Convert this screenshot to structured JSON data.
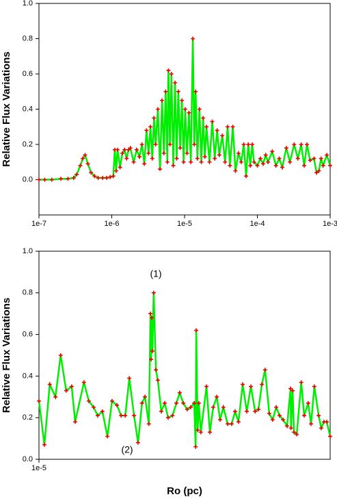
{
  "chart_data": [
    {
      "type": "line",
      "ylabel": "Relative Flux Variations",
      "xscale": "log",
      "color": "#00ee00",
      "marker_color": "#ee0000",
      "xlim": [
        1e-07,
        0.001
      ],
      "xticks": [
        {
          "value": 1e-07,
          "label": "1e-7"
        },
        {
          "value": 1e-06,
          "label": "1e-6"
        },
        {
          "value": 1e-05,
          "label": "1e-5"
        },
        {
          "value": 0.0001,
          "label": "1e-4"
        },
        {
          "value": 0.001,
          "label": "1e-3"
        }
      ],
      "ylim": [
        -0.2,
        1.0
      ],
      "yticks": [
        {
          "value": 0,
          "label": "0.0"
        },
        0.2,
        0.4,
        0.6,
        0.8,
        {
          "value": 1,
          "label": "1.0"
        }
      ],
      "x": [
        1e-07,
        1.2e-07,
        1.5e-07,
        2e-07,
        2.5e-07,
        3e-07,
        3.3e-07,
        3.7e-07,
        4e-07,
        4.3e-07,
        4.7e-07,
        5.2e-07,
        5.8e-07,
        6.5e-07,
        7.5e-07,
        8.5e-07,
        9.5e-07,
        1.05e-06,
        1.1e-06,
        1.15e-06,
        1.2e-06,
        1.3e-06,
        1.4e-06,
        1.5e-06,
        1.6e-06,
        1.7e-06,
        1.8e-06,
        2e-06,
        2.2e-06,
        2.4e-06,
        2.6e-06,
        2.8e-06,
        3e-06,
        3.2e-06,
        3.4e-06,
        3.6e-06,
        3.8e-06,
        4e-06,
        4.3e-06,
        4.6e-06,
        4.9e-06,
        5.2e-06,
        5.5e-06,
        5.8e-06,
        6e-06,
        6.3e-06,
        6.6e-06,
        7e-06,
        7.4e-06,
        7.8e-06,
        8.2e-06,
        8.7e-06,
        9.2e-06,
        9.7e-06,
        1.02e-05,
        1.08e-05,
        1.15e-05,
        1.22e-05,
        1.3e-05,
        1.36e-05,
        1.42e-05,
        1.5e-05,
        1.6e-05,
        1.7e-05,
        1.8e-05,
        1.9e-05,
        2e-05,
        2.2e-05,
        2.4e-05,
        2.6e-05,
        2.8e-05,
        3e-05,
        3.3e-05,
        3.6e-05,
        3.9e-05,
        4.2e-05,
        4.6e-05,
        5e-05,
        5.5e-05,
        6e-05,
        6.5e-05,
        7e-05,
        7.5e-05,
        8e-05,
        8.5e-05,
        9e-05,
        0.0001,
        0.00011,
        0.00012,
        0.00013,
        0.00014,
        0.00016,
        0.00018,
        0.0002,
        0.00022,
        0.00025,
        0.00028,
        0.00032,
        0.00036,
        0.0004,
        0.00044,
        0.00048,
        0.00053,
        0.0006,
        0.00065,
        0.0007,
        0.00075,
        0.0008,
        0.0009,
        0.001
      ],
      "values": [
        0,
        0,
        0,
        0.005,
        0.005,
        0.01,
        0.03,
        0.08,
        0.12,
        0.14,
        0.09,
        0.04,
        0.02,
        0.01,
        0.01,
        0.01,
        0.015,
        0.02,
        0.17,
        0.05,
        0.17,
        0.07,
        0.15,
        0.17,
        0.12,
        0.17,
        0.18,
        0.1,
        0.17,
        0.13,
        0.2,
        0.09,
        0.28,
        0.15,
        0.3,
        0.12,
        0.35,
        0.2,
        0.4,
        0.06,
        0.45,
        0.15,
        0.5,
        0.1,
        0.62,
        0.2,
        0.6,
        0.08,
        0.55,
        0.12,
        0.5,
        0.18,
        0.45,
        0.1,
        0.4,
        0.15,
        0.38,
        0.1,
        0.8,
        0.2,
        0.5,
        0.12,
        0.4,
        0.1,
        0.35,
        0.13,
        0.3,
        0.1,
        0.33,
        0.12,
        0.28,
        0.14,
        0.25,
        0.1,
        0.3,
        0.08,
        0.3,
        0.05,
        0.15,
        0.1,
        0.2,
        0.02,
        0.2,
        0.08,
        0.2,
        0.1,
        0.08,
        0.12,
        0.09,
        0.14,
        0.1,
        0.16,
        0.08,
        0.12,
        0.07,
        0.18,
        0.1,
        0.2,
        0.12,
        0.2,
        0.08,
        0.2,
        0.11,
        0.12,
        0.04,
        0.05,
        0.12,
        0.08,
        0.14,
        0.08
      ]
    },
    {
      "type": "line",
      "ylabel": "Relative Flux Variations",
      "xlabel": "Ro (pc)",
      "xscale": "log",
      "color": "#00ee00",
      "marker_color": "#ee0000",
      "annotations": [
        "(1)",
        "(2)"
      ],
      "xlim": [
        1e-05,
        2e-05
      ],
      "xticks": [
        {
          "value": 1e-05,
          "label": "1e-5"
        }
      ],
      "ylim": [
        0,
        1.0
      ],
      "yticks": [
        {
          "value": 0,
          "label": "0.0"
        },
        0.2,
        0.4,
        0.6,
        0.8,
        {
          "value": 1,
          "label": "1.0"
        }
      ],
      "x": [
        1e-05,
        1.013e-05,
        1.026e-05,
        1.04e-05,
        1.053e-05,
        1.067e-05,
        1.081e-05,
        1.09e-05,
        1.113e-05,
        1.126e-05,
        1.139e-05,
        1.15e-05,
        1.163e-05,
        1.177e-05,
        1.19e-05,
        1.204e-05,
        1.216e-05,
        1.228e-05,
        1.24e-05,
        1.254e-05,
        1.266e-05,
        1.278e-05,
        1.287e-05,
        1.299e-05,
        1.304e-05,
        1.306e-05,
        1.308e-05,
        1.31e-05,
        1.314e-05,
        1.321e-05,
        1.327e-05,
        1.338e-05,
        1.349e-05,
        1.36e-05,
        1.374e-05,
        1.387e-05,
        1.398e-05,
        1.41e-05,
        1.423e-05,
        1.435e-05,
        1.447e-05,
        1.452e-05,
        1.454e-05,
        1.459e-05,
        1.463e-05,
        1.47e-05,
        1.49e-05,
        1.502e-05,
        1.514e-05,
        1.527e-05,
        1.539e-05,
        1.551e-05,
        1.567e-05,
        1.582e-05,
        1.595e-05,
        1.608e-05,
        1.624e-05,
        1.64e-05,
        1.656e-05,
        1.673e-05,
        1.686e-05,
        1.7e-05,
        1.713e-05,
        1.73e-05,
        1.744e-05,
        1.759e-05,
        1.773e-05,
        1.788e-05,
        1.805e-05,
        1.82e-05,
        1.822e-05,
        1.829e-05,
        1.835e-05,
        1.847e-05,
        1.867e-05,
        1.88e-05,
        1.898e-05,
        1.911e-05,
        1.926e-05,
        1.946e-05,
        1.958e-05,
        1.971e-05,
        1.984e-05,
        2e-05
      ],
      "values": [
        0.28,
        0.07,
        0.36,
        0.3,
        0.5,
        0.33,
        0.35,
        0.18,
        0.37,
        0.28,
        0.25,
        0.21,
        0.23,
        0.11,
        0.28,
        0.26,
        0.21,
        0.21,
        0.39,
        0.21,
        0.08,
        0.27,
        0.3,
        0.17,
        0.7,
        0.48,
        0.68,
        0.52,
        0.8,
        0.43,
        0.38,
        0.23,
        0.27,
        0.2,
        0.21,
        0.27,
        0.32,
        0.27,
        0.24,
        0.25,
        0.27,
        0.06,
        0.62,
        0.14,
        0.27,
        0.13,
        0.35,
        0.13,
        0.25,
        0.3,
        0.19,
        0.25,
        0.17,
        0.17,
        0.23,
        0.18,
        0.36,
        0.23,
        0.35,
        0.23,
        0.24,
        0.36,
        0.43,
        0.22,
        0.19,
        0.25,
        0.21,
        0.19,
        0.16,
        0.34,
        0.15,
        0.33,
        0.13,
        0.12,
        0.37,
        0.21,
        0.27,
        0.17,
        0.35,
        0.21,
        0.15,
        0.18,
        0.18,
        0.11
      ]
    }
  ]
}
